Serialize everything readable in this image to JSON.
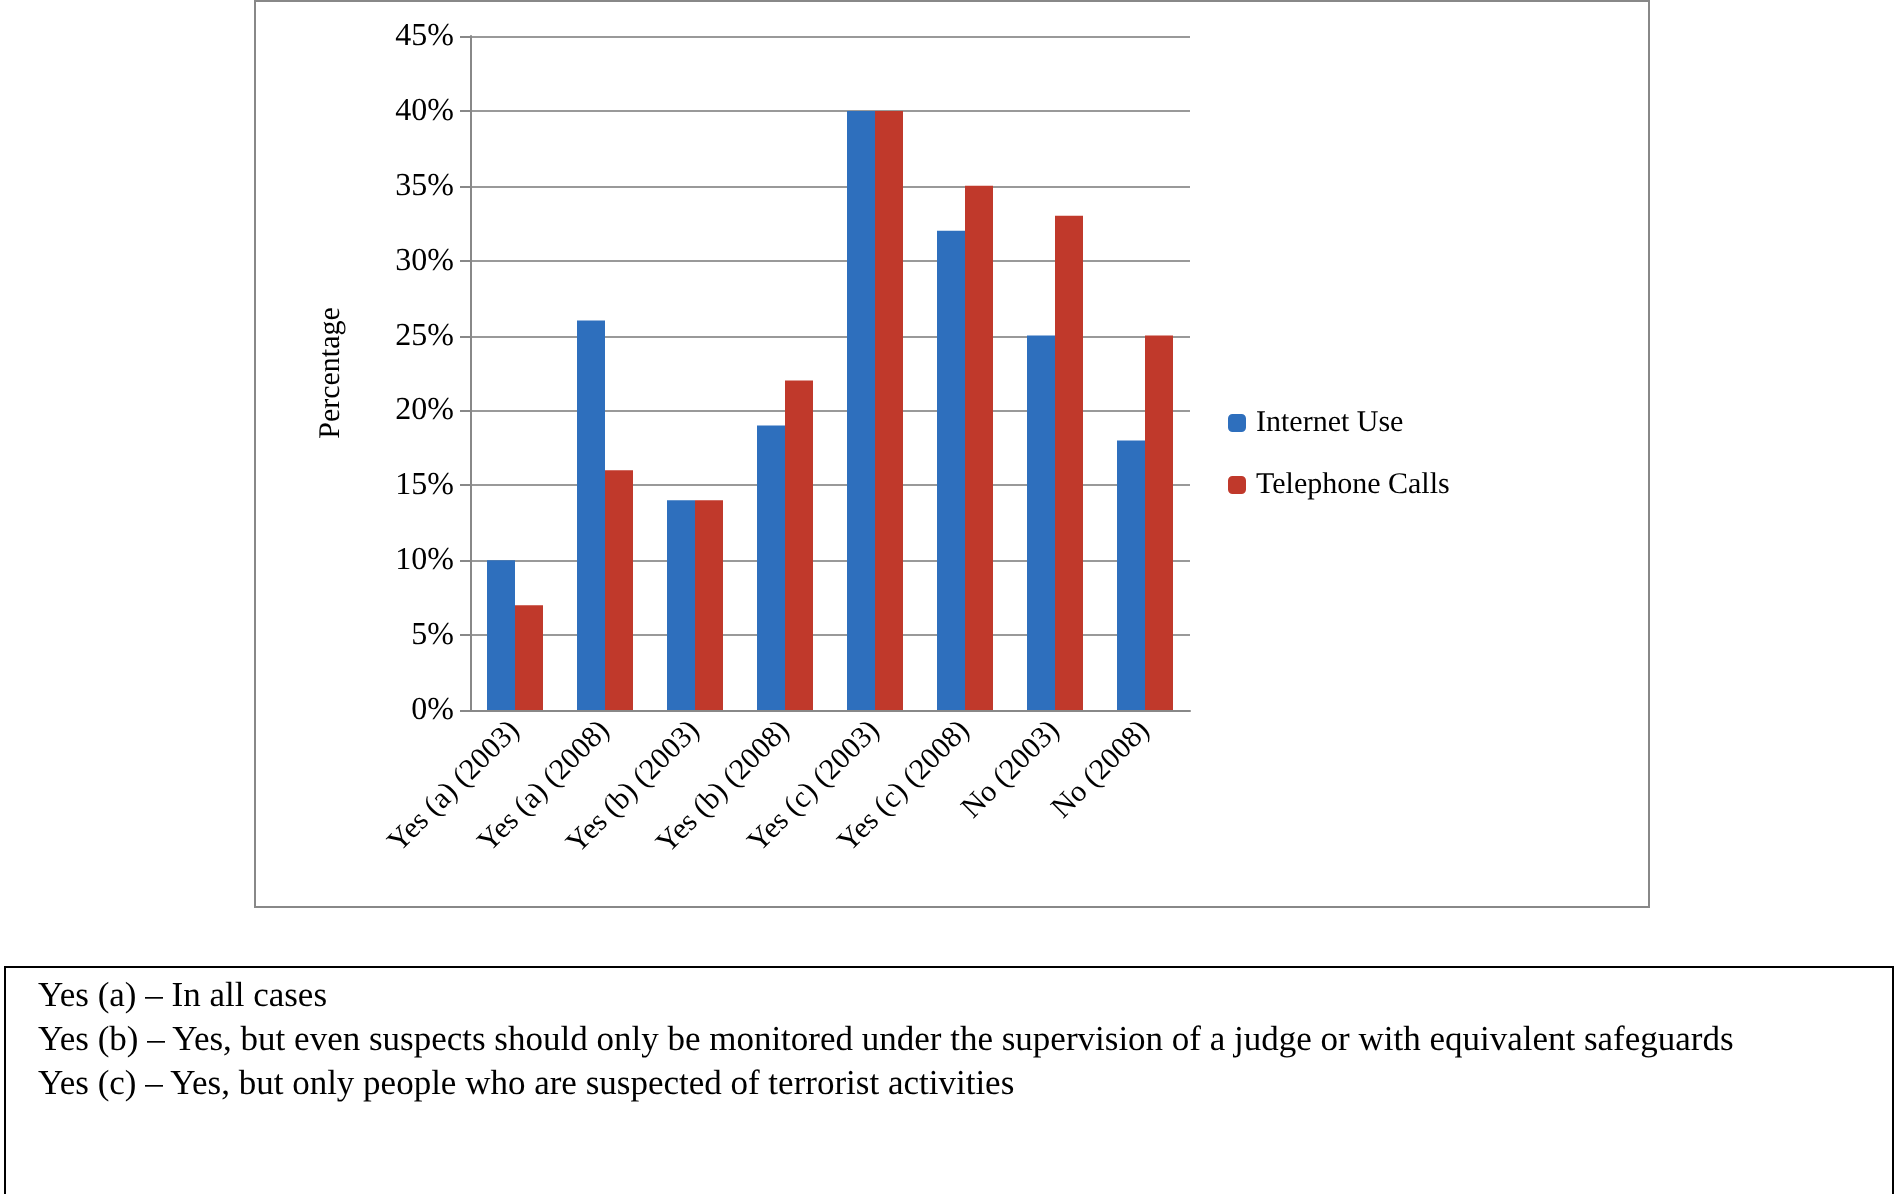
{
  "chart_data": {
    "type": "bar",
    "ylabel": "Percentage",
    "categories": [
      "Yes (a) (2003)",
      "Yes (a) (2008)",
      "Yes (b) (2003)",
      "Yes (b) (2008)",
      "Yes (c) (2003)",
      "Yes (c) (2008)",
      "No (2003)",
      "No (2008)"
    ],
    "series": [
      {
        "name": "Internet Use",
        "color": "#2e6fbd",
        "values": [
          10,
          26,
          14,
          19,
          40,
          32,
          25,
          18
        ]
      },
      {
        "name": "Telephone Calls",
        "color": "#c0392b",
        "values": [
          7,
          16,
          14,
          22,
          40,
          35,
          33,
          25
        ]
      }
    ],
    "ylim": [
      0,
      45
    ],
    "yticks": [
      {
        "value": 0,
        "label": "0%"
      },
      {
        "value": 5,
        "label": "5%"
      },
      {
        "value": 10,
        "label": "10%"
      },
      {
        "value": 15,
        "label": "15%"
      },
      {
        "value": 20,
        "label": "20%"
      },
      {
        "value": 25,
        "label": "25%"
      },
      {
        "value": 30,
        "label": "30%"
      },
      {
        "value": 35,
        "label": "35%"
      },
      {
        "value": 40,
        "label": "40%"
      },
      {
        "value": 45,
        "label": "45%"
      }
    ],
    "grid": "y",
    "legend": "right",
    "annotations": [
      "Yes (a) – In all cases",
      "Yes (b) – Yes, but even suspects should only be monitored under the supervision of a judge or with equivalent safeguards",
      "Yes (c) – Yes, but only people who are suspected of terrorist activities"
    ]
  }
}
